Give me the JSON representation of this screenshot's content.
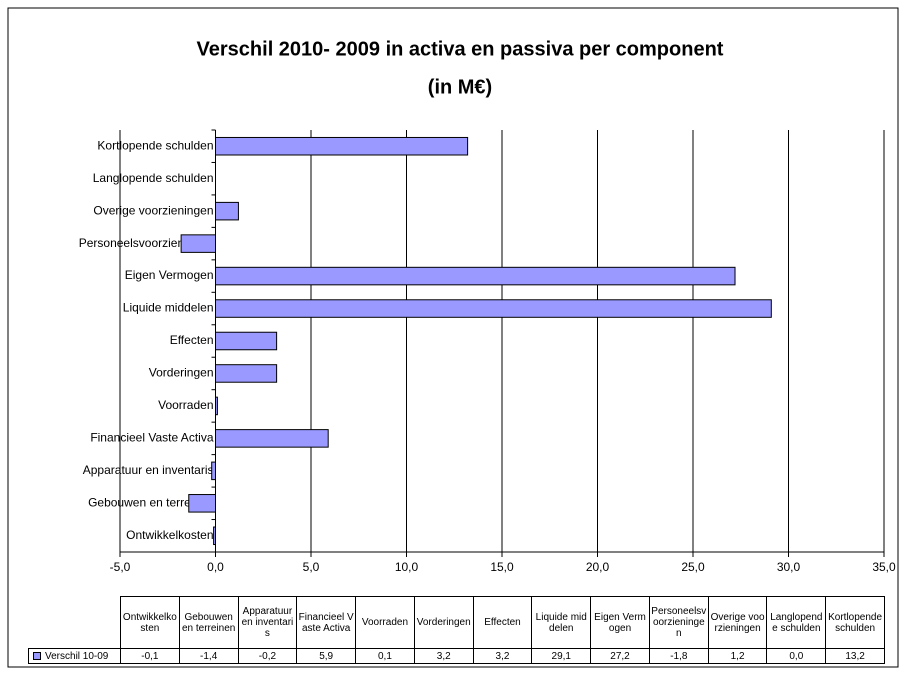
{
  "chart_data": {
    "type": "barh",
    "title": "Verschil 2010- 2009 in activa en passiva per component",
    "subtitle": "(in M€)",
    "categories": [
      "Ontwikkelkosten",
      "Gebouwen en terreinen",
      "Apparatuur en inventaris",
      "Financieel Vaste Activa",
      "Voorraden",
      "Vorderingen",
      "Effecten",
      "Liquide middelen",
      "Eigen Vermogen",
      "Personeelsvoorzieningen",
      "Overige voorzieningen",
      "Langlopende schulden",
      "Kortlopende schulden"
    ],
    "series": [
      {
        "name": "Verschil 10-09",
        "color": "#9999ff",
        "values": [
          -0.1,
          -1.4,
          -0.2,
          5.9,
          0.1,
          3.2,
          3.2,
          29.1,
          27.2,
          -1.8,
          1.2,
          0.0,
          13.2
        ],
        "value_labels": [
          "-0,1",
          "-1,4",
          "-0,2",
          "5,9",
          "0,1",
          "3,2",
          "3,2",
          "29,1",
          "27,2",
          "-1,8",
          "1,2",
          "0,0",
          "13,2"
        ]
      }
    ],
    "xlim": [
      -5,
      35
    ],
    "xticks": [
      {
        "value": -5,
        "label": "-5,0"
      },
      {
        "value": 0,
        "label": "0,0"
      },
      {
        "value": 5,
        "label": "5,0"
      },
      {
        "value": 10,
        "label": "10,0"
      },
      {
        "value": 15,
        "label": "15,0"
      },
      {
        "value": 20,
        "label": "20,0"
      },
      {
        "value": 25,
        "label": "25,0"
      },
      {
        "value": 30,
        "label": "30,0"
      },
      {
        "value": 35,
        "label": "35,0"
      }
    ],
    "grid": true
  }
}
